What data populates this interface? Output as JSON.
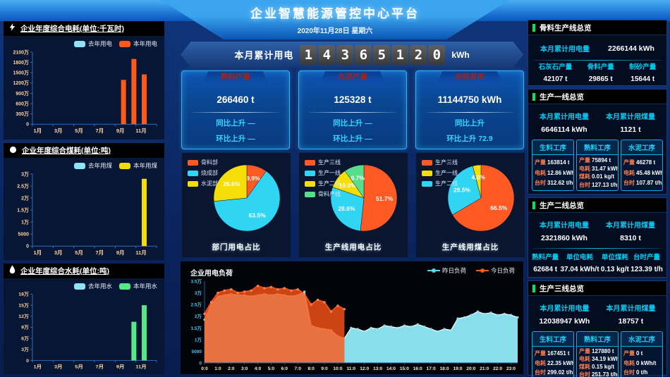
{
  "theme": {
    "page_bg": "#0b2560",
    "header_blue": "#3ba4ee",
    "panel_bg": "#071634",
    "deep_panel_bg": "#030d22",
    "accent_cyan": "#00cdf2",
    "accent_green": "#00e664",
    "label_orange": "#ff7e4e",
    "tab_red": "#a1231a"
  },
  "header": {
    "title": "企业智慧能源管控中心平台",
    "date": "2020年11月28日 星期六"
  },
  "counter": {
    "label": "本月累计用电",
    "digits": [
      "1",
      "4",
      "3",
      "6",
      "5",
      "1",
      "2",
      "0"
    ],
    "unit": "kWh"
  },
  "stat_cards": [
    {
      "title": "熟料产量",
      "value": "266460 t",
      "yoy": "同比上升 —",
      "mom": "环比上升 —"
    },
    {
      "title": "水泥产量",
      "value": "125328 t",
      "yoy": "同比上升 —",
      "mom": "环比上升 —"
    },
    {
      "title": "余热发电",
      "value": "11144750 kWh",
      "yoy": "同比上升",
      "mom": "环比上升 72.9"
    }
  ],
  "right_panels": [
    {
      "title": "骨料生产线总览",
      "rows_top": [
        {
          "label": "本月累计用电量",
          "value": "2266144 kWh"
        }
      ],
      "columns": [
        {
          "label": "石灰石产量",
          "value": "42107 t"
        },
        {
          "label": "骨料产量",
          "value": "29865 t"
        },
        {
          "label": "制砂产量",
          "value": "15644 t"
        }
      ]
    },
    {
      "title": "生产一线总览",
      "rows_top": [
        {
          "label": "本月累计用电量",
          "value": "6646114 kWh"
        },
        {
          "label": "本月累计用煤量",
          "value": "1121 t"
        }
      ],
      "process_cards": [
        {
          "title": "生料工序",
          "rows": [
            {
              "label": "产量",
              "value": "163814 t"
            },
            {
              "label": "电耗",
              "value": "12.86 kWh/t"
            },
            {
              "label": "台时",
              "value": "312.62 t/h"
            }
          ]
        },
        {
          "title": "熟料工序",
          "rows": [
            {
              "label": "产量",
              "value": "75894 t"
            },
            {
              "label": "电耗",
              "value": "31.47 kWh/t"
            },
            {
              "label": "煤耗",
              "value": "0.01 kg/t"
            },
            {
              "label": "台时",
              "value": "127.13 t/h"
            }
          ]
        },
        {
          "title": "水泥工序",
          "rows": [
            {
              "label": "产量",
              "value": "46278 t"
            },
            {
              "label": "电耗",
              "value": "45.48 kWh/t"
            },
            {
              "label": "台时",
              "value": "107.87 t/h"
            }
          ]
        }
      ]
    },
    {
      "title": "生产二线总览",
      "rows_top": [
        {
          "label": "本月累计用电量",
          "value": "2321860 kWh"
        },
        {
          "label": "本月累计用煤量",
          "value": "8310 t"
        }
      ],
      "columns": [
        {
          "label": "熟料产量",
          "value": "62684 t"
        },
        {
          "label": "单位电耗",
          "value": "37.04 kWh/t"
        },
        {
          "label": "单位煤耗",
          "value": "0.13 kg/t"
        },
        {
          "label": "台时产量",
          "value": "123.39 t/h"
        }
      ]
    },
    {
      "title": "生产三线总览",
      "rows_top": [
        {
          "label": "本月累计用电量",
          "value": "12038947 kWh"
        },
        {
          "label": "本月累计用煤量",
          "value": "18757 t"
        }
      ],
      "process_cards": [
        {
          "title": "生料工序",
          "rows": [
            {
              "label": "产量",
              "value": "167451 t"
            },
            {
              "label": "电耗",
              "value": "22.35 kWh/t"
            },
            {
              "label": "台时",
              "value": "299.02 t/h"
            }
          ]
        },
        {
          "title": "熟料工序",
          "rows": [
            {
              "label": "产量",
              "value": "127880 t"
            },
            {
              "label": "电耗",
              "value": "34.19 kWh/t"
            },
            {
              "label": "煤耗",
              "value": "0.15 kg/t"
            },
            {
              "label": "台时",
              "value": "251.73 t/h"
            }
          ]
        },
        {
          "title": "水泥工序",
          "rows": [
            {
              "label": "产量",
              "value": "0 t"
            },
            {
              "label": "电耗",
              "value": "0 kWh/t"
            },
            {
              "label": "台时",
              "value": "0 t/h"
            }
          ]
        }
      ]
    }
  ],
  "chart_data": [
    {
      "id": "bar-electric",
      "type": "bar",
      "title": "企业年度综合电耗(单位:千瓦时)",
      "icon": "lightning-icon",
      "categories": [
        "1月",
        "2月",
        "3月",
        "4月",
        "5月",
        "6月",
        "7月",
        "8月",
        "9月",
        "10月",
        "11月",
        "12月"
      ],
      "ymax": 21000000,
      "yticks": [
        "0",
        "300万",
        "600万",
        "900万",
        "1200万",
        "1500万",
        "1800万",
        "2100万"
      ],
      "series": [
        {
          "name": "去年用电",
          "color": "#8fe3f5",
          "values": [
            0,
            0,
            0,
            0,
            0,
            0,
            0,
            0,
            0,
            0,
            0,
            0
          ]
        },
        {
          "name": "本年用电",
          "color": "#ff5a17",
          "values": [
            0,
            0,
            0,
            0,
            0,
            0,
            0,
            0,
            12900000,
            19000000,
            14500000,
            0
          ]
        }
      ]
    },
    {
      "id": "bar-coal",
      "type": "bar",
      "title": "企业年度综合煤耗(单位:吨)",
      "icon": "coal-icon",
      "categories": [
        "1月",
        "2月",
        "3月",
        "4月",
        "5月",
        "6月",
        "7月",
        "8月",
        "9月",
        "10月",
        "11月",
        "12月"
      ],
      "ymax": 30000,
      "yticks": [
        "0",
        "5000",
        "1万",
        "1.5万",
        "2万",
        "2.5万",
        "3万"
      ],
      "series": [
        {
          "name": "去年用煤",
          "color": "#8fe3f5",
          "values": [
            0,
            0,
            0,
            0,
            0,
            0,
            0,
            0,
            0,
            0,
            0,
            0
          ]
        },
        {
          "name": "本年用煤",
          "color": "#f2dc0a",
          "values": [
            0,
            0,
            0,
            0,
            0,
            0,
            0,
            0,
            0,
            0,
            28000,
            0
          ]
        }
      ]
    },
    {
      "id": "bar-water",
      "type": "bar",
      "title": "企业年度综合水耗(单位:吨)",
      "icon": "water-drop-icon",
      "categories": [
        "1月",
        "2月",
        "3月",
        "4月",
        "5月",
        "6月",
        "7月",
        "8月",
        "9月",
        "10月",
        "11月",
        "12月"
      ],
      "ymax": 180000,
      "yticks": [
        "0",
        "3万",
        "6万",
        "9万",
        "12万",
        "15万",
        "18万"
      ],
      "series": [
        {
          "name": "去年用水",
          "color": "#8fe3f5",
          "values": [
            0,
            0,
            0,
            0,
            0,
            0,
            0,
            0,
            0,
            0,
            0,
            0
          ]
        },
        {
          "name": "本年用水",
          "color": "#55e887",
          "values": [
            0,
            0,
            0,
            0,
            0,
            0,
            0,
            0,
            0,
            105000,
            150000,
            0
          ]
        }
      ]
    },
    {
      "id": "pie-dept",
      "type": "pie",
      "title": "部门用电占比",
      "slices": [
        {
          "label": "骨料部",
          "value": 9.9,
          "color": "#ff5a23"
        },
        {
          "label": "烧成部",
          "value": 63.5,
          "color": "#2fd5f2"
        },
        {
          "label": "水泥部",
          "value": 26.6,
          "color": "#f5dd08"
        }
      ]
    },
    {
      "id": "pie-line-elec",
      "type": "pie",
      "title": "生产线用电占比",
      "slices": [
        {
          "label": "生产三线",
          "value": 51.7,
          "color": "#ff5a23"
        },
        {
          "label": "生产一线",
          "value": 28.6,
          "color": "#2fd5f2"
        },
        {
          "label": "生产二线",
          "value": 10.0,
          "color": "#f5dd08"
        },
        {
          "label": "骨料产线",
          "value": 9.7,
          "color": "#58dd8a"
        }
      ]
    },
    {
      "id": "pie-line-coal",
      "type": "pie",
      "title": "生产线用煤占比",
      "draw_order": [
        0,
        2,
        1
      ],
      "slices": [
        {
          "label": "生产三线",
          "value": 66.5,
          "color": "#ff5a23"
        },
        {
          "label": "生产一线",
          "value": 4.0,
          "color": "#f5dd08"
        },
        {
          "label": "生产二线",
          "value": 29.5,
          "color": "#2fd5f2"
        }
      ]
    },
    {
      "id": "area-load",
      "type": "area",
      "title": "企业用电负荷",
      "unit": "万kWh",
      "ymax": 3.5,
      "yticks": [
        "0",
        "5000",
        "1万",
        "1.5万",
        "2万",
        "2.5万",
        "3万",
        "3.5万"
      ],
      "x_step_hours": 0.5,
      "xlabels": [
        "0:0",
        "1:0",
        "2:0",
        "3:0",
        "4:0",
        "5:0",
        "6:0",
        "7:0",
        "8:0",
        "9:0",
        "10:0",
        "11:0",
        "12:0",
        "13:0",
        "14:0",
        "15:0",
        "16:0",
        "17:0",
        "18:0",
        "19:0",
        "20:0",
        "21:0",
        "22:0",
        "23:0"
      ],
      "series": [
        {
          "name": "昨日负荷",
          "color": "#8feaf8",
          "line_color": "#ffffff",
          "marker_color": "#5ad6f0",
          "opacity": 0.95,
          "values": [
            1.85,
            2.5,
            2.85,
            2.9,
            2.95,
            2.9,
            2.9,
            2.85,
            2.9,
            2.95,
            2.9,
            2.95,
            2.9,
            2.85,
            2.9,
            3.05,
            1.6,
            1.5,
            1.45,
            1.4,
            1.15,
            1.05,
            1.5,
            1.45,
            1.35,
            1.5,
            1.45,
            1.6,
            1.55,
            1.5,
            1.6,
            1.55,
            1.65,
            1.55,
            1.45,
            1.35,
            1.45,
            1.4,
            1.9,
            1.95,
            2.05,
            2.2,
            2.1,
            2.15,
            2.05,
            2.1,
            2.05,
            1.95
          ]
        },
        {
          "name": "今日负荷",
          "color": "#ff5517",
          "line_color": "#ff4d12",
          "marker_color": "#ff5517",
          "opacity": 0.8,
          "values": [
            2.1,
            2.6,
            3.0,
            3.1,
            3.15,
            3.0,
            3.05,
            3.1,
            3.3,
            3.2,
            3.25,
            3.15,
            3.2,
            3.1,
            3.15,
            2.95,
            2.5,
            2.7,
            2.6,
            2.2,
            2.45,
            2.3
          ]
        }
      ]
    }
  ]
}
